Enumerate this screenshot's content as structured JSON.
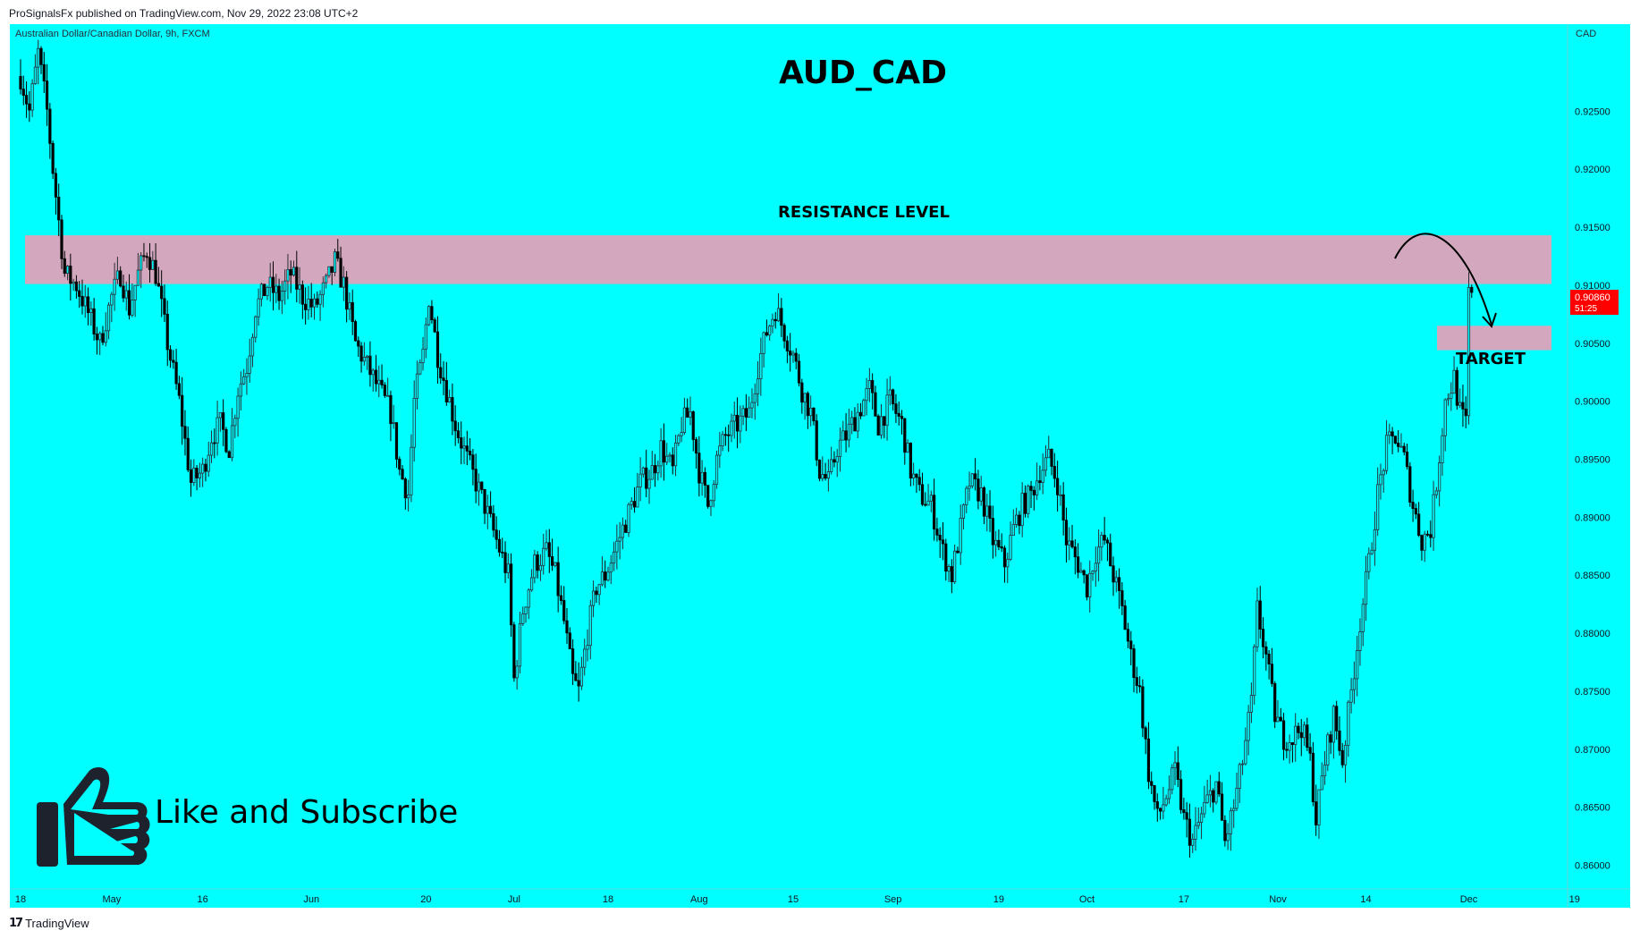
{
  "header": {
    "published_text": "ProSignalsFx published on TradingView.com, Nov 29, 2022 23:08 UTC+2"
  },
  "footer": {
    "brand_mark": "17",
    "brand_label": "TradingView"
  },
  "chart_data": {
    "type": "candlestick",
    "title": "AUD_CAD",
    "symbol_line": "Australian Dollar/Canadian Dollar, 9h, FXCM",
    "currency_label": "CAD",
    "ylim": [
      0.8585,
      0.9325
    ],
    "y_ticks": [
      "0.92500",
      "0.92000",
      "0.91500",
      "0.91000",
      "0.90500",
      "0.90000",
      "0.89500",
      "0.89000",
      "0.88500",
      "0.88000",
      "0.87500",
      "0.87000",
      "0.86500",
      "0.86000"
    ],
    "x_ticks": [
      {
        "label": "18",
        "bar": 0
      },
      {
        "label": "May",
        "bar": 31
      },
      {
        "label": "16",
        "bar": 62
      },
      {
        "label": "Jun",
        "bar": 99
      },
      {
        "label": "20",
        "bar": 138
      },
      {
        "label": "Jul",
        "bar": 168
      },
      {
        "label": "18",
        "bar": 200
      },
      {
        "label": "Aug",
        "bar": 231
      },
      {
        "label": "15",
        "bar": 263
      },
      {
        "label": "Sep",
        "bar": 297
      },
      {
        "label": "19",
        "bar": 333
      },
      {
        "label": "Oct",
        "bar": 363
      },
      {
        "label": "17",
        "bar": 396
      },
      {
        "label": "Nov",
        "bar": 428
      },
      {
        "label": "14",
        "bar": 458
      },
      {
        "label": "Dec",
        "bar": 493
      },
      {
        "label": "19",
        "bar": 529
      }
    ],
    "last_price": {
      "value": "0.90860",
      "countdown": "51:25",
      "y": 0.9086
    },
    "anchors": [
      [
        0,
        0.928
      ],
      [
        3,
        0.925
      ],
      [
        6,
        0.93
      ],
      [
        9,
        0.925
      ],
      [
        11,
        0.92
      ],
      [
        15,
        0.911
      ],
      [
        19,
        0.91
      ],
      [
        24,
        0.907
      ],
      [
        27,
        0.905
      ],
      [
        31,
        0.909
      ],
      [
        34,
        0.911
      ],
      [
        37,
        0.908
      ],
      [
        40,
        0.911
      ],
      [
        43,
        0.913
      ],
      [
        46,
        0.911
      ],
      [
        50,
        0.905
      ],
      [
        54,
        0.9
      ],
      [
        58,
        0.893
      ],
      [
        62,
        0.894
      ],
      [
        65,
        0.897
      ],
      [
        68,
        0.898
      ],
      [
        71,
        0.896
      ],
      [
        74,
        0.901
      ],
      [
        77,
        0.903
      ],
      [
        80,
        0.908
      ],
      [
        84,
        0.91
      ],
      [
        88,
        0.909
      ],
      [
        92,
        0.911
      ],
      [
        96,
        0.909
      ],
      [
        100,
        0.908
      ],
      [
        104,
        0.91
      ],
      [
        107,
        0.912
      ],
      [
        110,
        0.91
      ],
      [
        114,
        0.905
      ],
      [
        118,
        0.903
      ],
      [
        122,
        0.901
      ],
      [
        126,
        0.899
      ],
      [
        129,
        0.894
      ],
      [
        132,
        0.892
      ],
      [
        134,
        0.9
      ],
      [
        137,
        0.904
      ],
      [
        139,
        0.909
      ],
      [
        142,
        0.904
      ],
      [
        145,
        0.901
      ],
      [
        148,
        0.898
      ],
      [
        152,
        0.895
      ],
      [
        155,
        0.893
      ],
      [
        158,
        0.891
      ],
      [
        162,
        0.888
      ],
      [
        166,
        0.885
      ],
      [
        168,
        0.876
      ],
      [
        171,
        0.882
      ],
      [
        175,
        0.886
      ],
      [
        179,
        0.887
      ],
      [
        182,
        0.885
      ],
      [
        185,
        0.881
      ],
      [
        188,
        0.876
      ],
      [
        190,
        0.875
      ],
      [
        193,
        0.88
      ],
      [
        196,
        0.884
      ],
      [
        199,
        0.885
      ],
      [
        202,
        0.887
      ],
      [
        205,
        0.889
      ],
      [
        208,
        0.891
      ],
      [
        211,
        0.893
      ],
      [
        215,
        0.894
      ],
      [
        218,
        0.896
      ],
      [
        222,
        0.894
      ],
      [
        225,
        0.898
      ],
      [
        228,
        0.899
      ],
      [
        231,
        0.894
      ],
      [
        234,
        0.891
      ],
      [
        237,
        0.895
      ],
      [
        240,
        0.897
      ],
      [
        244,
        0.898
      ],
      [
        248,
        0.899
      ],
      [
        251,
        0.903
      ],
      [
        254,
        0.906
      ],
      [
        257,
        0.908
      ],
      [
        260,
        0.906
      ],
      [
        263,
        0.904
      ],
      [
        266,
        0.901
      ],
      [
        269,
        0.899
      ],
      [
        272,
        0.894
      ],
      [
        275,
        0.893
      ],
      [
        278,
        0.896
      ],
      [
        281,
        0.897
      ],
      [
        285,
        0.899
      ],
      [
        289,
        0.901
      ],
      [
        292,
        0.898
      ],
      [
        296,
        0.9
      ],
      [
        300,
        0.898
      ],
      [
        303,
        0.894
      ],
      [
        306,
        0.892
      ],
      [
        310,
        0.891
      ],
      [
        314,
        0.887
      ],
      [
        317,
        0.885
      ],
      [
        320,
        0.889
      ],
      [
        323,
        0.893
      ],
      [
        327,
        0.892
      ],
      [
        331,
        0.888
      ],
      [
        335,
        0.886
      ],
      [
        338,
        0.889
      ],
      [
        341,
        0.891
      ],
      [
        344,
        0.892
      ],
      [
        347,
        0.894
      ],
      [
        350,
        0.895
      ],
      [
        353,
        0.893
      ],
      [
        356,
        0.888
      ],
      [
        360,
        0.886
      ],
      [
        363,
        0.884
      ],
      [
        366,
        0.887
      ],
      [
        369,
        0.888
      ],
      [
        372,
        0.885
      ],
      [
        375,
        0.882
      ],
      [
        378,
        0.878
      ],
      [
        381,
        0.875
      ],
      [
        384,
        0.868
      ],
      [
        387,
        0.864
      ],
      [
        390,
        0.866
      ],
      [
        393,
        0.868
      ],
      [
        396,
        0.864
      ],
      [
        399,
        0.862
      ],
      [
        403,
        0.865
      ],
      [
        407,
        0.867
      ],
      [
        410,
        0.862
      ],
      [
        413,
        0.865
      ],
      [
        416,
        0.869
      ],
      [
        419,
        0.874
      ],
      [
        421,
        0.882
      ],
      [
        424,
        0.878
      ],
      [
        427,
        0.873
      ],
      [
        430,
        0.871
      ],
      [
        433,
        0.871
      ],
      [
        436,
        0.872
      ],
      [
        439,
        0.869
      ],
      [
        441,
        0.864
      ],
      [
        444,
        0.869
      ],
      [
        447,
        0.873
      ],
      [
        450,
        0.869
      ],
      [
        453,
        0.875
      ],
      [
        456,
        0.881
      ],
      [
        459,
        0.886
      ],
      [
        462,
        0.892
      ],
      [
        465,
        0.896
      ],
      [
        468,
        0.897
      ],
      [
        471,
        0.895
      ],
      [
        474,
        0.891
      ],
      [
        477,
        0.888
      ],
      [
        480,
        0.889
      ],
      [
        482,
        0.893
      ],
      [
        485,
        0.9
      ],
      [
        488,
        0.902
      ],
      [
        490,
        0.899
      ],
      [
        492,
        0.898
      ],
      [
        493,
        0.9095
      ],
      [
        494,
        0.9086
      ]
    ]
  },
  "annotations": {
    "resistance_label": "RESISTANCE LEVEL",
    "resistance_zone": [
      0.9101,
      0.9143
    ],
    "target_label": "TARGET",
    "target_zone": [
      0.9044,
      0.9065
    ]
  },
  "cta": {
    "text": "Like and Subscribe"
  },
  "colors": {
    "background": "#00FFFF",
    "up_candle": "#2A2E39",
    "down_candle": "#000000",
    "zone": "#D3A8BF",
    "price_label": "#FF0000",
    "icon": "#1E222D"
  }
}
